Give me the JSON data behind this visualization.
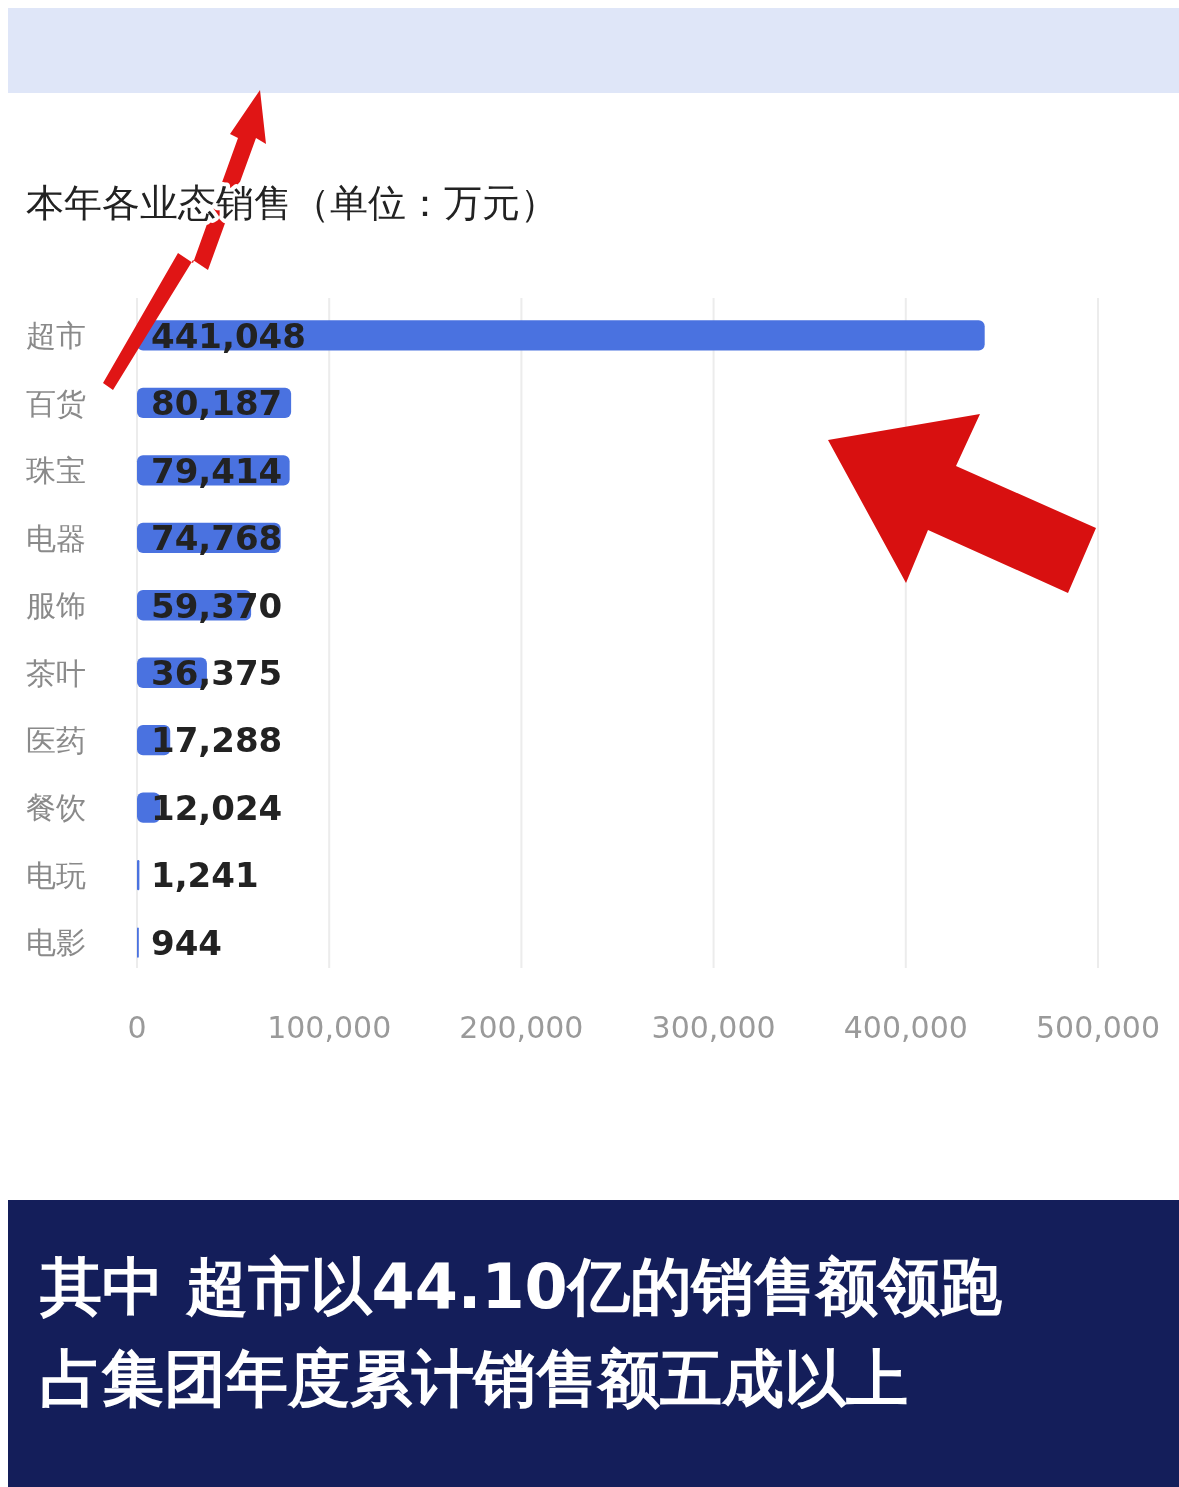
{
  "chart_data": {
    "type": "bar",
    "orientation": "horizontal",
    "title": "本年各业态销售（单位：万元）",
    "categories": [
      "超市",
      "百货",
      "珠宝",
      "电器",
      "服饰",
      "茶叶",
      "医药",
      "餐饮",
      "电玩",
      "电影"
    ],
    "values": [
      441048,
      80187,
      79414,
      74768,
      59370,
      36375,
      17288,
      12024,
      1241,
      944
    ],
    "color": "#4a72e0",
    "xlim": [
      0,
      500000
    ],
    "xticks": [
      {
        "value": 0,
        "label": "0"
      },
      {
        "value": 100000,
        "label": "100,000"
      },
      {
        "value": 200000,
        "label": "200,000"
      },
      {
        "value": 300000,
        "label": "300,000"
      },
      {
        "value": 400000,
        "label": "400,000"
      },
      {
        "value": 500000,
        "label": "500,000"
      }
    ],
    "grid": "x",
    "value_labels": [
      "441,048",
      "80,187",
      "79,414",
      "74,768",
      "59,370",
      "36,375",
      "17,288",
      "12,024",
      "1,241",
      "944"
    ],
    "annotations": [
      "其中 超市以44.10亿的销售额领跑",
      "占集团年度累计销售额五成以上"
    ]
  }
}
